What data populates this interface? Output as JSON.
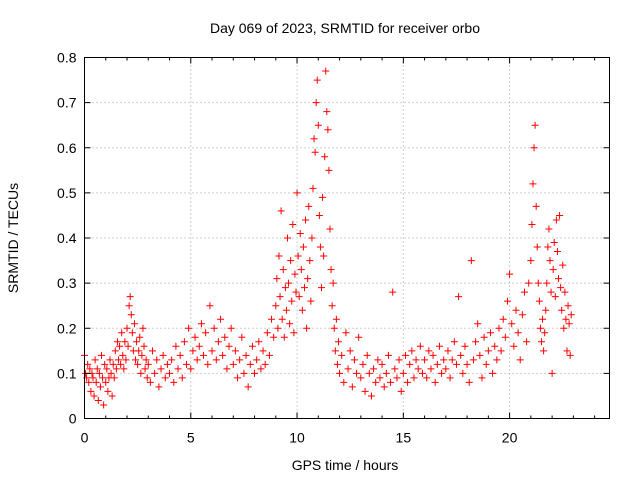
{
  "chart_data": {
    "type": "scatter",
    "title": "Day 069 of 2023, SRMTID for receiver orbo",
    "xlabel": "GPS time / hours",
    "ylabel": "SRMTID / TECUs",
    "xlim": [
      0,
      24.7
    ],
    "ylim": [
      0,
      0.8
    ],
    "xticks": [
      0,
      5,
      10,
      15,
      20
    ],
    "yticks": [
      0,
      0.1,
      0.2,
      0.3,
      0.4,
      0.5,
      0.6,
      0.7,
      0.8
    ],
    "xtick_labels": [
      "0",
      "5",
      "10",
      "15",
      "20"
    ],
    "ytick_labels": [
      "0",
      "0.1",
      "0.2",
      "0.3",
      "0.4",
      "0.5",
      "0.6",
      "0.7",
      "0.8"
    ],
    "grid": true,
    "marker": "+",
    "color": "#ff0000",
    "series": [
      {
        "name": "SRMTID",
        "points": [
          [
            0.0,
            0.14
          ],
          [
            0.05,
            0.1
          ],
          [
            0.1,
            0.09
          ],
          [
            0.15,
            0.12
          ],
          [
            0.2,
            0.08
          ],
          [
            0.25,
            0.11
          ],
          [
            0.3,
            0.06
          ],
          [
            0.35,
            0.1
          ],
          [
            0.4,
            0.09
          ],
          [
            0.45,
            0.05
          ],
          [
            0.5,
            0.13
          ],
          [
            0.55,
            0.08
          ],
          [
            0.6,
            0.11
          ],
          [
            0.65,
            0.04
          ],
          [
            0.7,
            0.1
          ],
          [
            0.75,
            0.07
          ],
          [
            0.8,
            0.14
          ],
          [
            0.85,
            0.09
          ],
          [
            0.9,
            0.03
          ],
          [
            0.95,
            0.12
          ],
          [
            1.0,
            0.08
          ],
          [
            1.05,
            0.11
          ],
          [
            1.1,
            0.06
          ],
          [
            1.15,
            0.09
          ],
          [
            1.2,
            0.13
          ],
          [
            1.25,
            0.1
          ],
          [
            1.3,
            0.05
          ],
          [
            1.35,
            0.12
          ],
          [
            1.4,
            0.09
          ],
          [
            1.45,
            0.15
          ],
          [
            1.5,
            0.11
          ],
          [
            1.55,
            0.17
          ],
          [
            1.6,
            0.13
          ],
          [
            1.65,
            0.16
          ],
          [
            1.7,
            0.12
          ],
          [
            1.75,
            0.19
          ],
          [
            1.8,
            0.14
          ],
          [
            1.85,
            0.11
          ],
          [
            1.9,
            0.17
          ],
          [
            1.95,
            0.13
          ],
          [
            2.0,
            0.2
          ],
          [
            2.05,
            0.16
          ],
          [
            2.1,
            0.25
          ],
          [
            2.15,
            0.27
          ],
          [
            2.2,
            0.23
          ],
          [
            2.25,
            0.19
          ],
          [
            2.3,
            0.15
          ],
          [
            2.35,
            0.21
          ],
          [
            2.4,
            0.13
          ],
          [
            2.45,
            0.17
          ],
          [
            2.5,
            0.12
          ],
          [
            2.55,
            0.15
          ],
          [
            2.6,
            0.18
          ],
          [
            2.65,
            0.1
          ],
          [
            2.7,
            0.14
          ],
          [
            2.75,
            0.2
          ],
          [
            2.8,
            0.16
          ],
          [
            2.85,
            0.11
          ],
          [
            2.9,
            0.13
          ],
          [
            2.95,
            0.09
          ],
          [
            3.0,
            0.12
          ],
          [
            3.1,
            0.08
          ],
          [
            3.2,
            0.15
          ],
          [
            3.3,
            0.1
          ],
          [
            3.4,
            0.13
          ],
          [
            3.5,
            0.07
          ],
          [
            3.6,
            0.11
          ],
          [
            3.7,
            0.14
          ],
          [
            3.8,
            0.09
          ],
          [
            3.9,
            0.12
          ],
          [
            4.0,
            0.1
          ],
          [
            4.1,
            0.13
          ],
          [
            4.2,
            0.08
          ],
          [
            4.3,
            0.16
          ],
          [
            4.4,
            0.11
          ],
          [
            4.5,
            0.14
          ],
          [
            4.6,
            0.09
          ],
          [
            4.7,
            0.17
          ],
          [
            4.8,
            0.12
          ],
          [
            4.9,
            0.2
          ],
          [
            5.0,
            0.11
          ],
          [
            5.1,
            0.15
          ],
          [
            5.2,
            0.18
          ],
          [
            5.3,
            0.13
          ],
          [
            5.4,
            0.16
          ],
          [
            5.5,
            0.21
          ],
          [
            5.6,
            0.14
          ],
          [
            5.7,
            0.19
          ],
          [
            5.8,
            0.12
          ],
          [
            5.9,
            0.25
          ],
          [
            6.0,
            0.15
          ],
          [
            6.1,
            0.2
          ],
          [
            6.2,
            0.13
          ],
          [
            6.3,
            0.17
          ],
          [
            6.4,
            0.22
          ],
          [
            6.5,
            0.14
          ],
          [
            6.6,
            0.18
          ],
          [
            6.7,
            0.11
          ],
          [
            6.8,
            0.16
          ],
          [
            6.9,
            0.2
          ],
          [
            7.0,
            0.12
          ],
          [
            7.1,
            0.15
          ],
          [
            7.2,
            0.09
          ],
          [
            7.3,
            0.13
          ],
          [
            7.4,
            0.18
          ],
          [
            7.5,
            0.1
          ],
          [
            7.6,
            0.14
          ],
          [
            7.7,
            0.07
          ],
          [
            7.8,
            0.12
          ],
          [
            7.9,
            0.16
          ],
          [
            8.0,
            0.1
          ],
          [
            8.1,
            0.13
          ],
          [
            8.2,
            0.17
          ],
          [
            8.3,
            0.11
          ],
          [
            8.4,
            0.15
          ],
          [
            8.5,
            0.12
          ],
          [
            8.6,
            0.19
          ],
          [
            8.7,
            0.14
          ],
          [
            8.8,
            0.22
          ],
          [
            8.9,
            0.18
          ],
          [
            9.0,
            0.25
          ],
          [
            9.05,
            0.31
          ],
          [
            9.1,
            0.2
          ],
          [
            9.15,
            0.36
          ],
          [
            9.2,
            0.27
          ],
          [
            9.25,
            0.46
          ],
          [
            9.3,
            0.22
          ],
          [
            9.35,
            0.33
          ],
          [
            9.4,
            0.18
          ],
          [
            9.45,
            0.29
          ],
          [
            9.5,
            0.24
          ],
          [
            9.55,
            0.4
          ],
          [
            9.6,
            0.3
          ],
          [
            9.65,
            0.21
          ],
          [
            9.7,
            0.35
          ],
          [
            9.75,
            0.26
          ],
          [
            9.8,
            0.43
          ],
          [
            9.85,
            0.19
          ],
          [
            9.9,
            0.32
          ],
          [
            9.95,
            0.28
          ],
          [
            10.0,
            0.5
          ],
          [
            10.05,
            0.36
          ],
          [
            10.1,
            0.27
          ],
          [
            10.15,
            0.41
          ],
          [
            10.2,
            0.33
          ],
          [
            10.25,
            0.24
          ],
          [
            10.3,
            0.38
          ],
          [
            10.35,
            0.29
          ],
          [
            10.4,
            0.44
          ],
          [
            10.45,
            0.2
          ],
          [
            10.5,
            0.31
          ],
          [
            10.55,
            0.47
          ],
          [
            10.6,
            0.35
          ],
          [
            10.65,
            0.26
          ],
          [
            10.7,
            0.4
          ],
          [
            10.75,
            0.51
          ],
          [
            10.8,
            0.62
          ],
          [
            10.85,
            0.59
          ],
          [
            10.9,
            0.7
          ],
          [
            10.95,
            0.75
          ],
          [
            11.0,
            0.65
          ],
          [
            11.05,
            0.45
          ],
          [
            11.1,
            0.38
          ],
          [
            11.15,
            0.29
          ],
          [
            11.2,
            0.49
          ],
          [
            11.25,
            0.36
          ],
          [
            11.3,
            0.58
          ],
          [
            11.35,
            0.77
          ],
          [
            11.4,
            0.68
          ],
          [
            11.45,
            0.64
          ],
          [
            11.5,
            0.55
          ],
          [
            11.55,
            0.42
          ],
          [
            11.6,
            0.33
          ],
          [
            11.65,
            0.25
          ],
          [
            11.7,
            0.3
          ],
          [
            11.75,
            0.2
          ],
          [
            11.8,
            0.15
          ],
          [
            11.85,
            0.22
          ],
          [
            11.9,
            0.12
          ],
          [
            11.95,
            0.17
          ],
          [
            12.0,
            0.1
          ],
          [
            12.1,
            0.14
          ],
          [
            12.2,
            0.08
          ],
          [
            12.3,
            0.19
          ],
          [
            12.4,
            0.11
          ],
          [
            12.5,
            0.15
          ],
          [
            12.6,
            0.07
          ],
          [
            12.7,
            0.13
          ],
          [
            12.8,
            0.1
          ],
          [
            12.9,
            0.18
          ],
          [
            13.0,
            0.09
          ],
          [
            13.1,
            0.12
          ],
          [
            13.2,
            0.06
          ],
          [
            13.3,
            0.14
          ],
          [
            13.4,
            0.1
          ],
          [
            13.5,
            0.05
          ],
          [
            13.6,
            0.11
          ],
          [
            13.7,
            0.08
          ],
          [
            13.8,
            0.13
          ],
          [
            13.9,
            0.09
          ],
          [
            14.0,
            0.12
          ],
          [
            14.1,
            0.07
          ],
          [
            14.2,
            0.1
          ],
          [
            14.3,
            0.14
          ],
          [
            14.4,
            0.08
          ],
          [
            14.5,
            0.28
          ],
          [
            14.6,
            0.11
          ],
          [
            14.7,
            0.09
          ],
          [
            14.8,
            0.13
          ],
          [
            14.9,
            0.06
          ],
          [
            15.0,
            0.1
          ],
          [
            15.1,
            0.14
          ],
          [
            15.2,
            0.08
          ],
          [
            15.3,
            0.12
          ],
          [
            15.4,
            0.15
          ],
          [
            15.5,
            0.09
          ],
          [
            15.6,
            0.13
          ],
          [
            15.7,
            0.11
          ],
          [
            15.8,
            0.16
          ],
          [
            15.9,
            0.1
          ],
          [
            16.0,
            0.13
          ],
          [
            16.1,
            0.09
          ],
          [
            16.2,
            0.15
          ],
          [
            16.3,
            0.11
          ],
          [
            16.4,
            0.14
          ],
          [
            16.5,
            0.08
          ],
          [
            16.6,
            0.12
          ],
          [
            16.7,
            0.16
          ],
          [
            16.8,
            0.1
          ],
          [
            16.9,
            0.13
          ],
          [
            17.0,
            0.11
          ],
          [
            17.1,
            0.15
          ],
          [
            17.2,
            0.09
          ],
          [
            17.3,
            0.13
          ],
          [
            17.4,
            0.17
          ],
          [
            17.5,
            0.12
          ],
          [
            17.6,
            0.27
          ],
          [
            17.7,
            0.14
          ],
          [
            17.8,
            0.1
          ],
          [
            17.9,
            0.16
          ],
          [
            18.0,
            0.12
          ],
          [
            18.1,
            0.08
          ],
          [
            18.2,
            0.35
          ],
          [
            18.3,
            0.13
          ],
          [
            18.4,
            0.17
          ],
          [
            18.5,
            0.21
          ],
          [
            18.6,
            0.14
          ],
          [
            18.7,
            0.09
          ],
          [
            18.8,
            0.18
          ],
          [
            18.9,
            0.12
          ],
          [
            19.0,
            0.15
          ],
          [
            19.1,
            0.19
          ],
          [
            19.2,
            0.1
          ],
          [
            19.3,
            0.16
          ],
          [
            19.4,
            0.13
          ],
          [
            19.5,
            0.2
          ],
          [
            19.6,
            0.15
          ],
          [
            19.7,
            0.22
          ],
          [
            19.8,
            0.18
          ],
          [
            19.9,
            0.26
          ],
          [
            20.0,
            0.32
          ],
          [
            20.1,
            0.21
          ],
          [
            20.2,
            0.16
          ],
          [
            20.3,
            0.24
          ],
          [
            20.4,
            0.19
          ],
          [
            20.5,
            0.13
          ],
          [
            20.6,
            0.23
          ],
          [
            20.7,
            0.28
          ],
          [
            20.8,
            0.17
          ],
          [
            20.9,
            0.3
          ],
          [
            21.0,
            0.35
          ],
          [
            21.05,
            0.43
          ],
          [
            21.1,
            0.52
          ],
          [
            21.15,
            0.6
          ],
          [
            21.2,
            0.65
          ],
          [
            21.25,
            0.47
          ],
          [
            21.3,
            0.38
          ],
          [
            21.35,
            0.3
          ],
          [
            21.4,
            0.26
          ],
          [
            21.45,
            0.2
          ],
          [
            21.5,
            0.17
          ],
          [
            21.55,
            0.22
          ],
          [
            21.6,
            0.15
          ],
          [
            21.65,
            0.19
          ],
          [
            21.7,
            0.24
          ],
          [
            21.75,
            0.3
          ],
          [
            21.8,
            0.38
          ],
          [
            21.85,
            0.42
          ],
          [
            21.9,
            0.35
          ],
          [
            21.95,
            0.28
          ],
          [
            22.0,
            0.1
          ],
          [
            22.05,
            0.33
          ],
          [
            22.1,
            0.39
          ],
          [
            22.15,
            0.27
          ],
          [
            22.2,
            0.44
          ],
          [
            22.25,
            0.37
          ],
          [
            22.3,
            0.31
          ],
          [
            22.35,
            0.45
          ],
          [
            22.4,
            0.29
          ],
          [
            22.45,
            0.24
          ],
          [
            22.5,
            0.34
          ],
          [
            22.55,
            0.2
          ],
          [
            22.6,
            0.28
          ],
          [
            22.65,
            0.22
          ],
          [
            22.7,
            0.15
          ],
          [
            22.75,
            0.25
          ],
          [
            22.8,
            0.21
          ],
          [
            22.85,
            0.14
          ],
          [
            22.9,
            0.23
          ]
        ]
      }
    ]
  }
}
